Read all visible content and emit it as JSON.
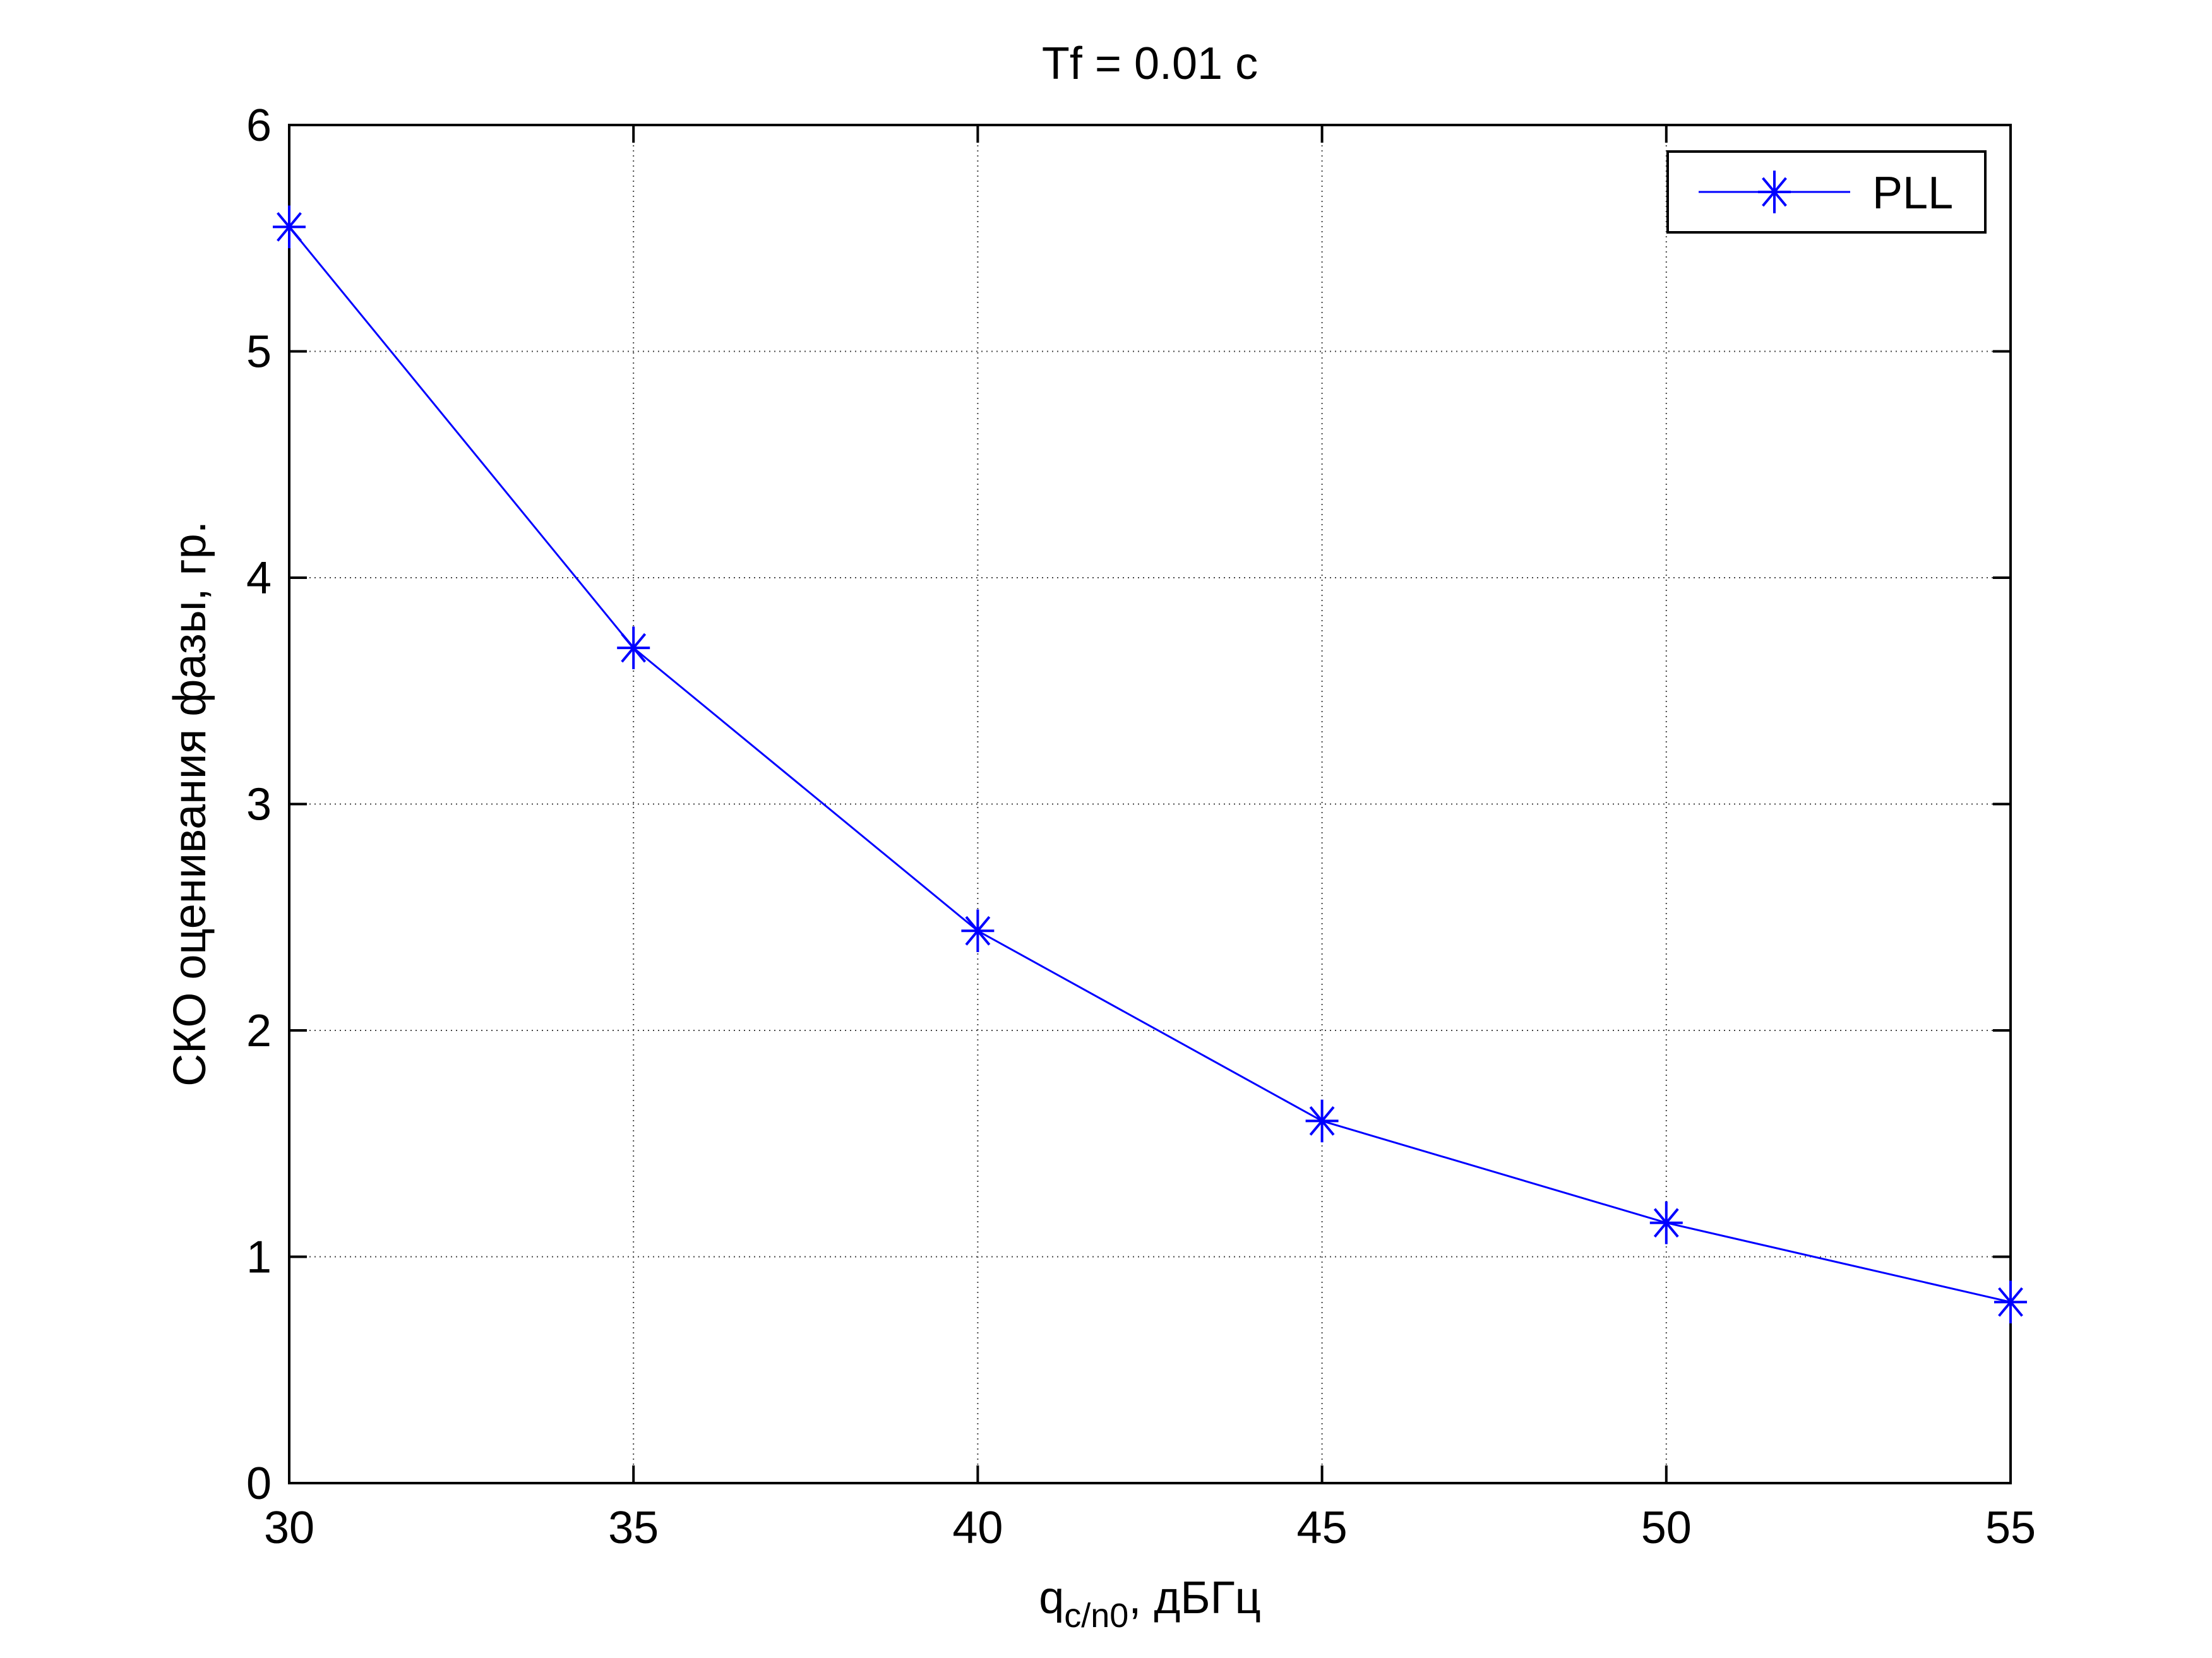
{
  "chart_data": {
    "type": "line",
    "title": "Tf = 0.01 c",
    "xlabel_main": "q",
    "xlabel_sub": "c/n0",
    "xlabel_unit": ", дБГц",
    "ylabel": "СКО оценивания фазы, гр.",
    "xlim": [
      30,
      55
    ],
    "ylim": [
      0,
      6
    ],
    "xticks": [
      30,
      35,
      40,
      45,
      50,
      55
    ],
    "yticks": [
      0,
      1,
      2,
      3,
      4,
      5,
      6
    ],
    "grid": true,
    "legend_position": "top-right",
    "series": [
      {
        "name": "PLL",
        "color": "#0000ff",
        "marker": "asterisk",
        "x": [
          30,
          35,
          40,
          45,
          50,
          55
        ],
        "y": [
          5.55,
          3.69,
          2.44,
          1.6,
          1.15,
          0.8
        ]
      }
    ]
  }
}
